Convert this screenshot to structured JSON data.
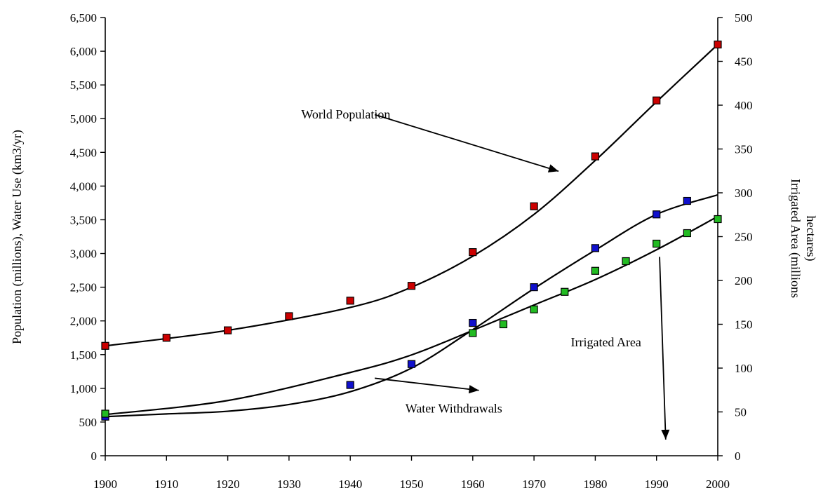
{
  "chart_data": {
    "type": "line",
    "title": "",
    "xlabel": "",
    "ylabel": "Population (millions), Water Use (km3/yr)",
    "y2label": "Irrigated Area (millions hectares)",
    "xlim": [
      1900,
      2000
    ],
    "ylim": [
      0,
      6500
    ],
    "y2lim": [
      0,
      500
    ],
    "grid": false,
    "legend": "none",
    "x_ticks": [
      "1900",
      "1910",
      "1920",
      "1930",
      "1940",
      "1950",
      "1960",
      "1970",
      "1980",
      "1990",
      "2000"
    ],
    "y_ticks": [
      "0",
      "500",
      "1,000",
      "1,500",
      "2,000",
      "2,500",
      "3,000",
      "3,500",
      "4,000",
      "4,500",
      "5,000",
      "5,500",
      "6,000",
      "6,500"
    ],
    "y2_ticks": [
      "0",
      "50",
      "100",
      "150",
      "200",
      "250",
      "300",
      "350",
      "400",
      "450",
      "500"
    ],
    "series": [
      {
        "axis": "left",
        "color": "#cc0000",
        "points": [
          [
            1900,
            1630
          ],
          [
            1910,
            1750
          ],
          [
            1920,
            1860
          ],
          [
            1930,
            2070
          ],
          [
            1940,
            2300
          ],
          [
            1950,
            2520
          ],
          [
            1960,
            3020
          ],
          [
            1970,
            3700
          ],
          [
            1980,
            4440
          ],
          [
            1990,
            5270
          ],
          [
            2000,
            6100
          ]
        ],
        "fit": [
          [
            1900,
            1630
          ],
          [
            1920,
            1860
          ],
          [
            1940,
            2200
          ],
          [
            1950,
            2500
          ],
          [
            1960,
            2960
          ],
          [
            1970,
            3580
          ],
          [
            1980,
            4380
          ],
          [
            1990,
            5250
          ],
          [
            2000,
            6100
          ]
        ]
      },
      {
        "axis": "left",
        "color": "#1010cc",
        "points": [
          [
            1900,
            580
          ],
          [
            1940,
            1050
          ],
          [
            1950,
            1360
          ],
          [
            1960,
            1970
          ],
          [
            1970,
            2500
          ],
          [
            1980,
            3080
          ],
          [
            1990,
            3580
          ],
          [
            1995,
            3780
          ]
        ],
        "fit": [
          [
            1900,
            580
          ],
          [
            1910,
            620
          ],
          [
            1920,
            660
          ],
          [
            1930,
            760
          ],
          [
            1940,
            950
          ],
          [
            1950,
            1300
          ],
          [
            1960,
            1870
          ],
          [
            1970,
            2480
          ],
          [
            1980,
            3050
          ],
          [
            1990,
            3580
          ],
          [
            2000,
            3870
          ]
        ]
      },
      {
        "axis": "right",
        "color": "#22bb22",
        "points": [
          [
            1900,
            48
          ],
          [
            1960,
            140
          ],
          [
            1965,
            150
          ],
          [
            1970,
            167
          ],
          [
            1975,
            187
          ],
          [
            1980,
            211
          ],
          [
            1985,
            222
          ],
          [
            1990,
            242
          ],
          [
            1995,
            254
          ],
          [
            2000,
            270
          ]
        ],
        "fit": [
          [
            1900,
            47
          ],
          [
            1920,
            63
          ],
          [
            1940,
            95
          ],
          [
            1950,
            115
          ],
          [
            1960,
            143
          ],
          [
            1970,
            172
          ],
          [
            1980,
            201
          ],
          [
            1990,
            235
          ],
          [
            2000,
            273
          ]
        ]
      }
    ],
    "annotations": [
      {
        "text": "World Population",
        "from": [
          1944,
          5060
        ],
        "to": [
          1974,
          4220
        ],
        "tx": 1932,
        "ty": 5000
      },
      {
        "text": "Irrigated Area",
        "from": [
          1990.5,
          2950
        ],
        "to": [
          1991.5,
          240
        ],
        "tx": 1976,
        "ty": 1620
      },
      {
        "text": "Water Withdrawals",
        "from": [
          1944,
          1150
        ],
        "to": [
          1961,
          970
        ],
        "tx": 1949,
        "ty": 640
      }
    ]
  }
}
